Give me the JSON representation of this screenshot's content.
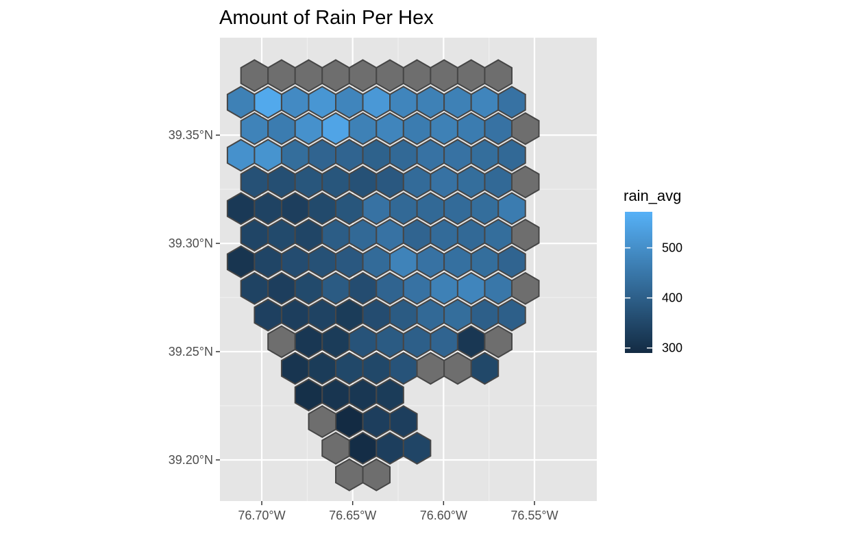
{
  "chart_data": {
    "type": "heatmap",
    "title": "Amount of Rain Per Hex",
    "x_ticks": [
      {
        "value": -76.7,
        "label": "76.70°W"
      },
      {
        "value": -76.65,
        "label": "76.65°W"
      },
      {
        "value": -76.6,
        "label": "76.60°W"
      },
      {
        "value": -76.55,
        "label": "76.55°W"
      }
    ],
    "y_ticks": [
      {
        "value": 39.35,
        "label": "39.35°N"
      },
      {
        "value": 39.3,
        "label": "39.30°N"
      },
      {
        "value": 39.25,
        "label": "39.25°N"
      },
      {
        "value": 39.2,
        "label": "39.20°N"
      }
    ],
    "xlim": [
      -76.723,
      -76.5157
    ],
    "ylim": [
      39.181,
      39.395
    ],
    "grid": true,
    "legend": {
      "title": "rain_avg",
      "placement": "right",
      "range": [
        290,
        572
      ],
      "ticks": [
        300,
        400,
        500
      ],
      "color_low": "#132b43",
      "color_high": "#56b1f7"
    },
    "na_color": "#6e6e6e",
    "outline_color": "#464646",
    "panel_background": "#e5e5e5",
    "hex_x_step": 0.0149,
    "hex_y_step": 0.0123,
    "hex_x_start": -76.704,
    "hex_rows": [
      {
        "y": 39.3775,
        "offset": 0,
        "values": [
          null,
          null,
          null,
          null,
          null,
          null,
          null,
          null,
          null,
          null
        ]
      },
      {
        "y": 39.3652,
        "offset": -0.5,
        "values": [
          470,
          555,
          490,
          515,
          480,
          520,
          480,
          470,
          470,
          480,
          440
        ]
      },
      {
        "y": 39.353,
        "offset": 0,
        "values": [
          475,
          460,
          505,
          545,
          470,
          480,
          460,
          470,
          460,
          440,
          null
        ]
      },
      {
        "y": 39.3407,
        "offset": -0.5,
        "values": [
          505,
          510,
          430,
          410,
          410,
          405,
          420,
          440,
          440,
          430,
          420
        ]
      },
      {
        "y": 39.3284,
        "offset": 0,
        "values": [
          370,
          365,
          380,
          380,
          370,
          385,
          425,
          440,
          430,
          420,
          null
        ]
      },
      {
        "y": 39.3161,
        "offset": -0.5,
        "values": [
          320,
          340,
          330,
          355,
          380,
          440,
          420,
          420,
          425,
          430,
          460
        ]
      },
      {
        "y": 39.3038,
        "offset": 0,
        "values": [
          345,
          355,
          345,
          395,
          420,
          440,
          410,
          425,
          420,
          430,
          null
        ]
      },
      {
        "y": 39.2915,
        "offset": -0.5,
        "values": [
          310,
          345,
          360,
          370,
          385,
          425,
          475,
          440,
          435,
          430,
          410
        ]
      },
      {
        "y": 39.2792,
        "offset": 0,
        "values": [
          340,
          330,
          355,
          390,
          360,
          410,
          440,
          470,
          480,
          450,
          null
        ]
      },
      {
        "y": 39.2669,
        "offset": 0.5,
        "values": [
          335,
          330,
          340,
          325,
          360,
          390,
          420,
          430,
          400,
          400
        ]
      },
      {
        "y": 39.2546,
        "offset": 1,
        "values": [
          null,
          315,
          325,
          375,
          390,
          400,
          410,
          315,
          null
        ]
      },
      {
        "y": 39.2423,
        "offset": 1.5,
        "values": [
          310,
          325,
          350,
          350,
          375,
          null,
          null,
          350
        ]
      },
      {
        "y": 39.23,
        "offset": 2,
        "values": [
          300,
          310,
          315,
          325
        ]
      },
      {
        "y": 39.2177,
        "offset": 2.5,
        "values": [
          null,
          290,
          330,
          330
        ]
      },
      {
        "y": 39.2054,
        "offset": 3,
        "values": [
          null,
          295,
          330,
          345
        ]
      },
      {
        "y": 39.1931,
        "offset": 3.5,
        "values": [
          null,
          null
        ]
      }
    ]
  }
}
